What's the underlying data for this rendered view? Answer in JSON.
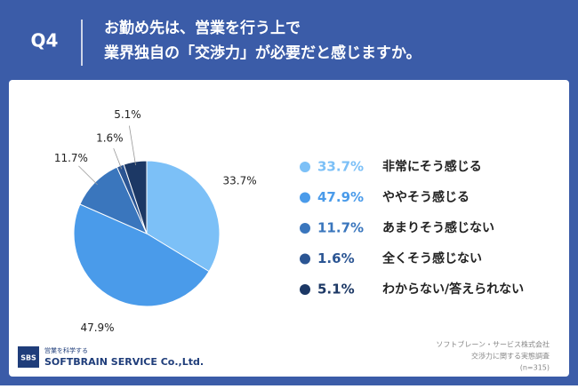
{
  "header": {
    "question": "Q4",
    "title_lines": [
      "お勤め先は、営業を行う上で",
      "業界独自の「交渉力」が必要だと感じますか。"
    ]
  },
  "chart_data": {
    "type": "pie",
    "categories": [
      "非常にそう感じる",
      "ややそう感じる",
      "あまりそう感じない",
      "全くそう感じない",
      "わからない/答えられない"
    ],
    "values": [
      33.7,
      47.9,
      11.7,
      1.6,
      5.1
    ],
    "value_labels": [
      "33.7%",
      "47.9%",
      "11.7%",
      "1.6%",
      "5.1%"
    ],
    "colors": [
      "#7cc0f7",
      "#4a9bea",
      "#3a76bd",
      "#2b5593",
      "#1c3865"
    ]
  },
  "footer": {
    "logo": "SBS",
    "tagline": "営業を科学する",
    "company": "SOFTBRAIN SERVICE Co.,Ltd.",
    "source_lines": [
      "ソフトブレーン・サービス株式会社",
      "交渉力に関する実態調査",
      "(n=315)"
    ]
  }
}
